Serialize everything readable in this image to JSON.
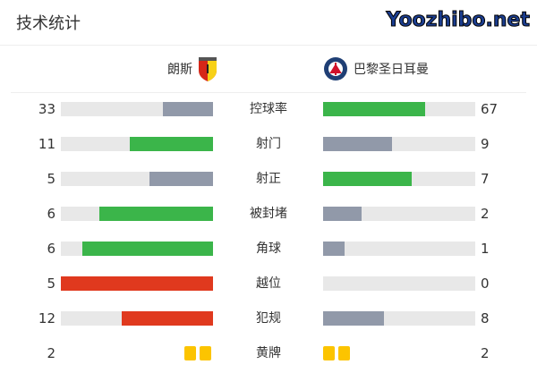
{
  "title": "技术统计",
  "home": {
    "name": "朗斯",
    "logo_icon": "rc-lens-crest"
  },
  "away": {
    "name": "巴黎圣日耳曼",
    "logo_icon": "psg-crest"
  },
  "colors": {
    "green": "#3bb54a",
    "gray": "#9199a9",
    "red": "#e0391e",
    "track": "#e8e8e8",
    "yellow": "#fcc400"
  },
  "stats": [
    {
      "label": "控球率",
      "home": "33",
      "away": "67",
      "home_color": "gray",
      "away_color": "green"
    },
    {
      "label": "射门",
      "home": "11",
      "away": "9",
      "home_color": "green",
      "away_color": "gray"
    },
    {
      "label": "射正",
      "home": "5",
      "away": "7",
      "home_color": "gray",
      "away_color": "green"
    },
    {
      "label": "被封堵",
      "home": "6",
      "away": "2",
      "home_color": "green",
      "away_color": "gray"
    },
    {
      "label": "角球",
      "home": "6",
      "away": "1",
      "home_color": "green",
      "away_color": "gray"
    },
    {
      "label": "越位",
      "home": "5",
      "away": "0",
      "home_color": "red",
      "away_color": "gray"
    },
    {
      "label": "犯规",
      "home": "12",
      "away": "8",
      "home_color": "red",
      "away_color": "gray"
    }
  ],
  "yellow": {
    "label": "黄牌",
    "home": "2",
    "away": "2"
  },
  "watermark": "Yoozhibo.net"
}
